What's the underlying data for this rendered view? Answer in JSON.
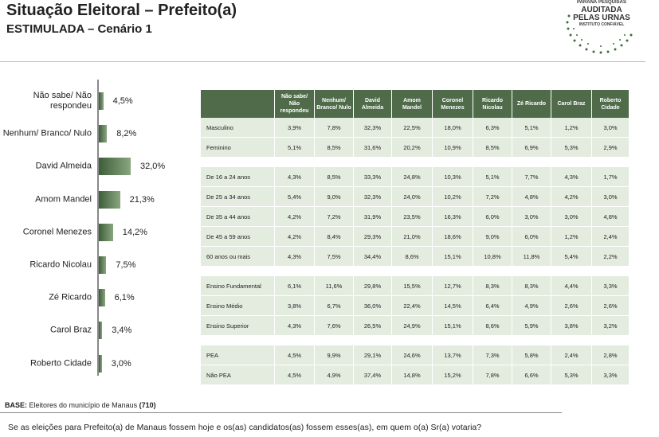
{
  "header": {
    "title": "Situação Eleitoral – Prefeito(a)",
    "subtitle": "ESTIMULADA – Cenário 1",
    "logo": [
      "PARANÁ PESQUISAS",
      "AUDITADA",
      "PELAS URNAS",
      "INSTITUTO CONFIÁVEL"
    ]
  },
  "chart_data": {
    "type": "bar",
    "orientation": "horizontal",
    "color": "#3d5e3a",
    "categories": [
      "Não sabe/ Não respondeu",
      "Nenhum/ Branco/ Nulo",
      "David Almeida",
      "Amom Mandel",
      "Coronel Menezes",
      "Ricardo Nicolau",
      "Zé Ricardo",
      "Carol Braz",
      "Roberto Cidade"
    ],
    "values": [
      4.5,
      8.2,
      32.0,
      21.3,
      14.2,
      7.5,
      6.1,
      3.4,
      3.0
    ],
    "value_labels": [
      "4,5%",
      "8,2%",
      "32,0%",
      "21,3%",
      "14,2%",
      "7,5%",
      "6,1%",
      "3,4%",
      "3,0%"
    ]
  },
  "table": {
    "columns": [
      "Não sabe/ Não respondeu",
      "Nenhum/ Branco/ Nulo",
      "David Almeida",
      "Amom Mandel",
      "Coronel Menezes",
      "Ricardo Nicolau",
      "Zé Ricardo",
      "Carol Braz",
      "Roberto Cidade"
    ],
    "groups": [
      [
        {
          "label": "Masculino",
          "cells": [
            "3,9%",
            "7,8%",
            "32,3%",
            "22,5%",
            "18,0%",
            "6,3%",
            "5,1%",
            "1,2%",
            "3,0%"
          ]
        },
        {
          "label": "Feminino",
          "cells": [
            "5,1%",
            "8,5%",
            "31,6%",
            "20,2%",
            "10,9%",
            "8,5%",
            "6,9%",
            "5,3%",
            "2,9%"
          ]
        }
      ],
      [
        {
          "label": "De 16 a 24 anos",
          "cells": [
            "4,3%",
            "8,5%",
            "33,3%",
            "24,8%",
            "10,3%",
            "5,1%",
            "7,7%",
            "4,3%",
            "1,7%"
          ]
        },
        {
          "label": "De 25 a 34 anos",
          "cells": [
            "5,4%",
            "9,0%",
            "32,3%",
            "24,0%",
            "10,2%",
            "7,2%",
            "4,8%",
            "4,2%",
            "3,0%"
          ]
        },
        {
          "label": "De 35 a 44 anos",
          "cells": [
            "4,2%",
            "7,2%",
            "31,9%",
            "23,5%",
            "16,3%",
            "6,0%",
            "3,0%",
            "3,0%",
            "4,8%"
          ]
        },
        {
          "label": "De 45 a 59 anos",
          "cells": [
            "4,2%",
            "8,4%",
            "29,3%",
            "21,0%",
            "18,6%",
            "9,0%",
            "6,0%",
            "1,2%",
            "2,4%"
          ]
        },
        {
          "label": "60 anos ou mais",
          "cells": [
            "4,3%",
            "7,5%",
            "34,4%",
            "8,6%",
            "15,1%",
            "10,8%",
            "11,8%",
            "5,4%",
            "2,2%"
          ]
        }
      ],
      [
        {
          "label": "Ensino Fundamental",
          "cells": [
            "6,1%",
            "11,6%",
            "29,8%",
            "15,5%",
            "12,7%",
            "8,3%",
            "8,3%",
            "4,4%",
            "3,3%"
          ]
        },
        {
          "label": "Ensino Médio",
          "cells": [
            "3,8%",
            "6,7%",
            "36,0%",
            "22,4%",
            "14,5%",
            "6,4%",
            "4,9%",
            "2,6%",
            "2,6%"
          ]
        },
        {
          "label": "Ensino Superior",
          "cells": [
            "4,3%",
            "7,6%",
            "26,5%",
            "24,9%",
            "15,1%",
            "8,6%",
            "5,9%",
            "3,8%",
            "3,2%"
          ]
        }
      ],
      [
        {
          "label": "PEA",
          "cells": [
            "4,5%",
            "9,9%",
            "29,1%",
            "24,6%",
            "13,7%",
            "7,3%",
            "5,8%",
            "2,4%",
            "2,8%"
          ]
        },
        {
          "label": "Não PEA",
          "cells": [
            "4,5%",
            "4,9%",
            "37,4%",
            "14,8%",
            "15,2%",
            "7,8%",
            "6,6%",
            "5,3%",
            "3,3%"
          ]
        }
      ]
    ]
  },
  "footer": {
    "base_label": "BASE:",
    "base": "Eleitores do município de Manaus",
    "base_n": "(710)",
    "question": "Se as eleições para Prefeito(a) de Manaus fossem hoje e os(as) candidatos(as) fossem esses(as), em quem o(a) Sr(a) votaria?"
  }
}
